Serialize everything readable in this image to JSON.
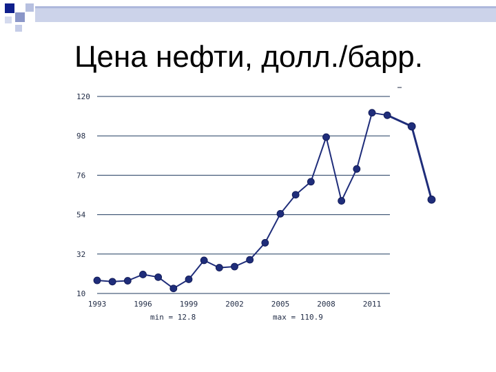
{
  "slide": {
    "title": "Цена нефти, долл./барр."
  },
  "colors": {
    "accent_dark": "#0f1f8c",
    "accent_light": "#c8cfe6",
    "line": "#1f2d7a",
    "marker": "#1f2d7a",
    "grid": "#1f3a5e",
    "text": "#1f2a44"
  },
  "chart_data": {
    "type": "line",
    "title": "",
    "xlabel": "",
    "ylabel": "",
    "ylim": [
      10,
      120
    ],
    "y_ticks": [
      120,
      98,
      76,
      54,
      32,
      10
    ],
    "x_ticks": [
      1993,
      1996,
      1999,
      2002,
      2005,
      2008,
      2011
    ],
    "xlim": [
      1993,
      2013
    ],
    "grid": true,
    "annotations": {
      "min": "min = 12.8",
      "max": "max = 110.9"
    },
    "series": [
      {
        "x": [
          1993,
          1994,
          1995,
          1996,
          1997,
          1998,
          1999,
          2000,
          2001,
          2002,
          2003,
          2004,
          2005,
          2006,
          2007,
          2008,
          2009,
          2010,
          2011,
          2012
        ],
        "values": [
          17.3,
          16.6,
          17.1,
          20.6,
          19.1,
          12.8,
          17.9,
          28.5,
          24.4,
          25.0,
          28.8,
          38.3,
          54.5,
          65.1,
          72.4,
          97.3,
          61.7,
          79.5,
          110.9,
          109.5
        ]
      },
      {
        "x": [
          2012,
          2013.6,
          2014.9
        ],
        "values": [
          109.5,
          103.3,
          62.4
        ]
      }
    ]
  }
}
